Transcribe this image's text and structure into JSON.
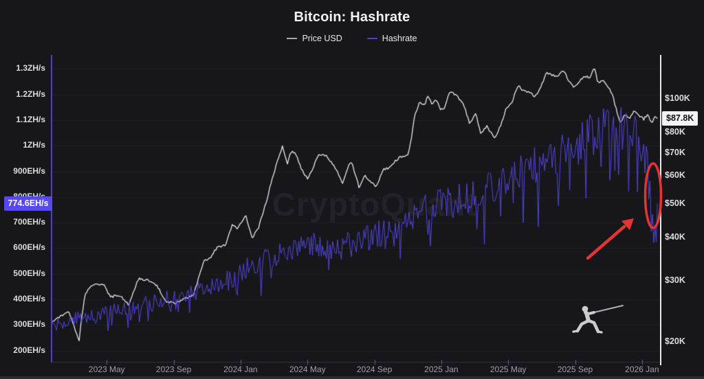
{
  "header": {
    "title": "Bitcoin: Hashrate",
    "legend": [
      {
        "label": "Price USD",
        "color": "#a9a9af"
      },
      {
        "label": "Hashrate",
        "color": "#4b3fd6"
      }
    ]
  },
  "watermark": {
    "text": "CryptoQuant"
  },
  "badges": {
    "hashrate": {
      "text": "774.6EH/s",
      "bg": "#5748f0",
      "fg": "#ffffff"
    },
    "price": {
      "text": "$87.8K",
      "bg": "#f2f2f4",
      "fg": "#101013"
    }
  },
  "colors": {
    "background": "#17171b",
    "gridline": "#1f1f24",
    "annotation_red": "#e53434",
    "price_line": "#e4e4e6",
    "hashrate_line": "#5347e0",
    "left_axis_line": "#4b3fd6",
    "right_axis_line": "#eaeaee"
  },
  "chart_data": {
    "type": "line",
    "title": "Bitcoin: Hashrate",
    "legend_position": "top-center",
    "grid": "horizontal-faint",
    "x_axis": {
      "tick_labels": [
        "2023 May",
        "2023 Sep",
        "2024 Jan",
        "2024 May",
        "2024 Sep",
        "2025 Jan",
        "2025 May",
        "2025 Sep",
        "2026 Jan"
      ],
      "tick_t": [
        3,
        7,
        11,
        15,
        19,
        23,
        27,
        31,
        35
      ],
      "t_unit": "months since 2023-02",
      "visible_range_t": [
        -0.3,
        36.0
      ]
    },
    "y_left": {
      "name": "Hashrate",
      "unit": "EH/s",
      "scale": "linear",
      "range": [
        200,
        1300
      ],
      "ticks": [
        "1.3ZH/s",
        "1.2ZH/s",
        "1.1ZH/s",
        "1ZH/s",
        "900EH/s",
        "800EH/s",
        "700EH/s",
        "600EH/s",
        "500EH/s",
        "400EH/s",
        "300EH/s",
        "200EH/s"
      ],
      "tick_values": [
        1300,
        1200,
        1100,
        1000,
        900,
        800,
        700,
        600,
        500,
        400,
        300,
        200
      ],
      "latest_label": "774.6EH/s",
      "latest_value": 774.6
    },
    "y_right": {
      "name": "Price USD",
      "unit": "USD (thousands)",
      "scale": "log",
      "ticks": [
        "$100K",
        "$80K",
        "$70K",
        "$60K",
        "$50K",
        "$40K",
        "$30K",
        "$20K"
      ],
      "tick_values": [
        100,
        80,
        70,
        60,
        50,
        40,
        30,
        20
      ],
      "latest_label": "$87.8K",
      "latest_value": 87.8
    },
    "series": [
      {
        "name": "Price USD",
        "axis": "right",
        "color": "#e4e4e6",
        "anchors": [
          [
            -0.3,
            22.8
          ],
          [
            0,
            23.4
          ],
          [
            0.7,
            24.6
          ],
          [
            1.1,
            21.8
          ],
          [
            1.35,
            20.3
          ],
          [
            1.7,
            27.6
          ],
          [
            2.2,
            29.3
          ],
          [
            2.8,
            29.4
          ],
          [
            3.2,
            27.0
          ],
          [
            3.8,
            27.3
          ],
          [
            4.3,
            25.6
          ],
          [
            4.9,
            30.4
          ],
          [
            5.4,
            30.2
          ],
          [
            6.0,
            29.2
          ],
          [
            6.5,
            26.1
          ],
          [
            7.1,
            25.9
          ],
          [
            7.6,
            26.6
          ],
          [
            8.2,
            27.3
          ],
          [
            8.8,
            34.2
          ],
          [
            9.2,
            35.1
          ],
          [
            9.6,
            37.4
          ],
          [
            10.1,
            38.0
          ],
          [
            10.5,
            43.6
          ],
          [
            10.8,
            42.2
          ],
          [
            11.3,
            46.4
          ],
          [
            11.7,
            39.8
          ],
          [
            12.1,
            42.9
          ],
          [
            12.6,
            51.8
          ],
          [
            13.0,
            61.5
          ],
          [
            13.5,
            72.8
          ],
          [
            13.8,
            64.5
          ],
          [
            14.0,
            70.5
          ],
          [
            14.3,
            69.8
          ],
          [
            14.6,
            63.5
          ],
          [
            15.0,
            58.8
          ],
          [
            15.4,
            64.5
          ],
          [
            15.7,
            69.5
          ],
          [
            16.1,
            68.8
          ],
          [
            16.5,
            65.2
          ],
          [
            17.1,
            57.3
          ],
          [
            17.6,
            66.5
          ],
          [
            18.1,
            55.3
          ],
          [
            18.4,
            60.5
          ],
          [
            18.8,
            57.8
          ],
          [
            19.1,
            55.5
          ],
          [
            19.5,
            62.5
          ],
          [
            19.9,
            63.5
          ],
          [
            20.3,
            66.8
          ],
          [
            20.7,
            68.5
          ],
          [
            21.0,
            69.5
          ],
          [
            21.2,
            75.5
          ],
          [
            21.4,
            89.5
          ],
          [
            21.7,
            97.8
          ],
          [
            22.0,
            96.0
          ],
          [
            22.2,
            102.3
          ],
          [
            22.45,
            96.5
          ],
          [
            22.7,
            99.0
          ],
          [
            22.95,
            93.5
          ],
          [
            23.2,
            94.5
          ],
          [
            23.45,
            103.0
          ],
          [
            23.6,
            104.8
          ],
          [
            23.9,
            102.0
          ],
          [
            24.3,
            97.5
          ],
          [
            24.7,
            84.5
          ],
          [
            25.05,
            91.0
          ],
          [
            25.35,
            79.8
          ],
          [
            25.7,
            83.5
          ],
          [
            26.2,
            76.8
          ],
          [
            26.6,
            85.0
          ],
          [
            26.9,
            94.5
          ],
          [
            27.2,
            97.0
          ],
          [
            27.6,
            109.5
          ],
          [
            27.9,
            105.5
          ],
          [
            28.2,
            104.5
          ],
          [
            28.6,
            101.5
          ],
          [
            28.9,
            107.5
          ],
          [
            29.3,
            118.5
          ],
          [
            29.6,
            117.5
          ],
          [
            29.9,
            115.5
          ],
          [
            30.3,
            120.5
          ],
          [
            30.6,
            113.5
          ],
          [
            30.9,
            108.5
          ],
          [
            31.2,
            111.5
          ],
          [
            31.6,
            116.5
          ],
          [
            31.9,
            114.0
          ],
          [
            32.15,
            124.5
          ],
          [
            32.35,
            110.5
          ],
          [
            32.6,
            113.5
          ],
          [
            32.9,
            110.0
          ],
          [
            33.2,
            103.5
          ],
          [
            33.5,
            92.0
          ],
          [
            33.7,
            84.5
          ],
          [
            34.0,
            91.0
          ],
          [
            34.25,
            87.5
          ],
          [
            34.55,
            93.0
          ],
          [
            34.8,
            89.5
          ],
          [
            35.1,
            87.5
          ],
          [
            35.35,
            90.5
          ],
          [
            35.6,
            84.5
          ],
          [
            35.75,
            89.0
          ],
          [
            35.92,
            87.8
          ]
        ]
      },
      {
        "name": "Hashrate",
        "axis": "left",
        "color": "#5347e0",
        "anchors": [
          [
            -0.3,
            300
          ],
          [
            0.5,
            310
          ],
          [
            1.5,
            330
          ],
          [
            3,
            345
          ],
          [
            4,
            365
          ],
          [
            5,
            375
          ],
          [
            6,
            390
          ],
          [
            7,
            405
          ],
          [
            8,
            425
          ],
          [
            9,
            445
          ],
          [
            10,
            465
          ],
          [
            10.8,
            500
          ],
          [
            11.5,
            525
          ],
          [
            12.5,
            560
          ],
          [
            13.5,
            590
          ],
          [
            14.5,
            605
          ],
          [
            15.5,
            610
          ],
          [
            16.2,
            585
          ],
          [
            17,
            605
          ],
          [
            18,
            625
          ],
          [
            19,
            645
          ],
          [
            20,
            675
          ],
          [
            21,
            710
          ],
          [
            22,
            745
          ],
          [
            23,
            775
          ],
          [
            24,
            790
          ],
          [
            25,
            815
          ],
          [
            26,
            845
          ],
          [
            27,
            880
          ],
          [
            28,
            910
          ],
          [
            29,
            935
          ],
          [
            30,
            960
          ],
          [
            30.8,
            995
          ],
          [
            31.6,
            1030
          ],
          [
            32.4,
            1065
          ],
          [
            33.2,
            1085
          ],
          [
            33.8,
            1070
          ],
          [
            34.3,
            1045
          ],
          [
            34.8,
            1025
          ],
          [
            35.2,
            1000
          ],
          [
            35.5,
            880
          ],
          [
            35.68,
            700
          ],
          [
            35.8,
            720
          ],
          [
            35.92,
            774.6
          ]
        ]
      }
    ],
    "annotations": {
      "ellipse_label": "highlighted final hashrate drop",
      "arrow_label": "arrow pointing at circled drop"
    },
    "render": {
      "seed": 20260131,
      "step_months": 0.075,
      "hash_noise": 0.085,
      "hash_dip_prob": 0.1,
      "price_noise": 0.008,
      "t_end": 35.92
    }
  }
}
